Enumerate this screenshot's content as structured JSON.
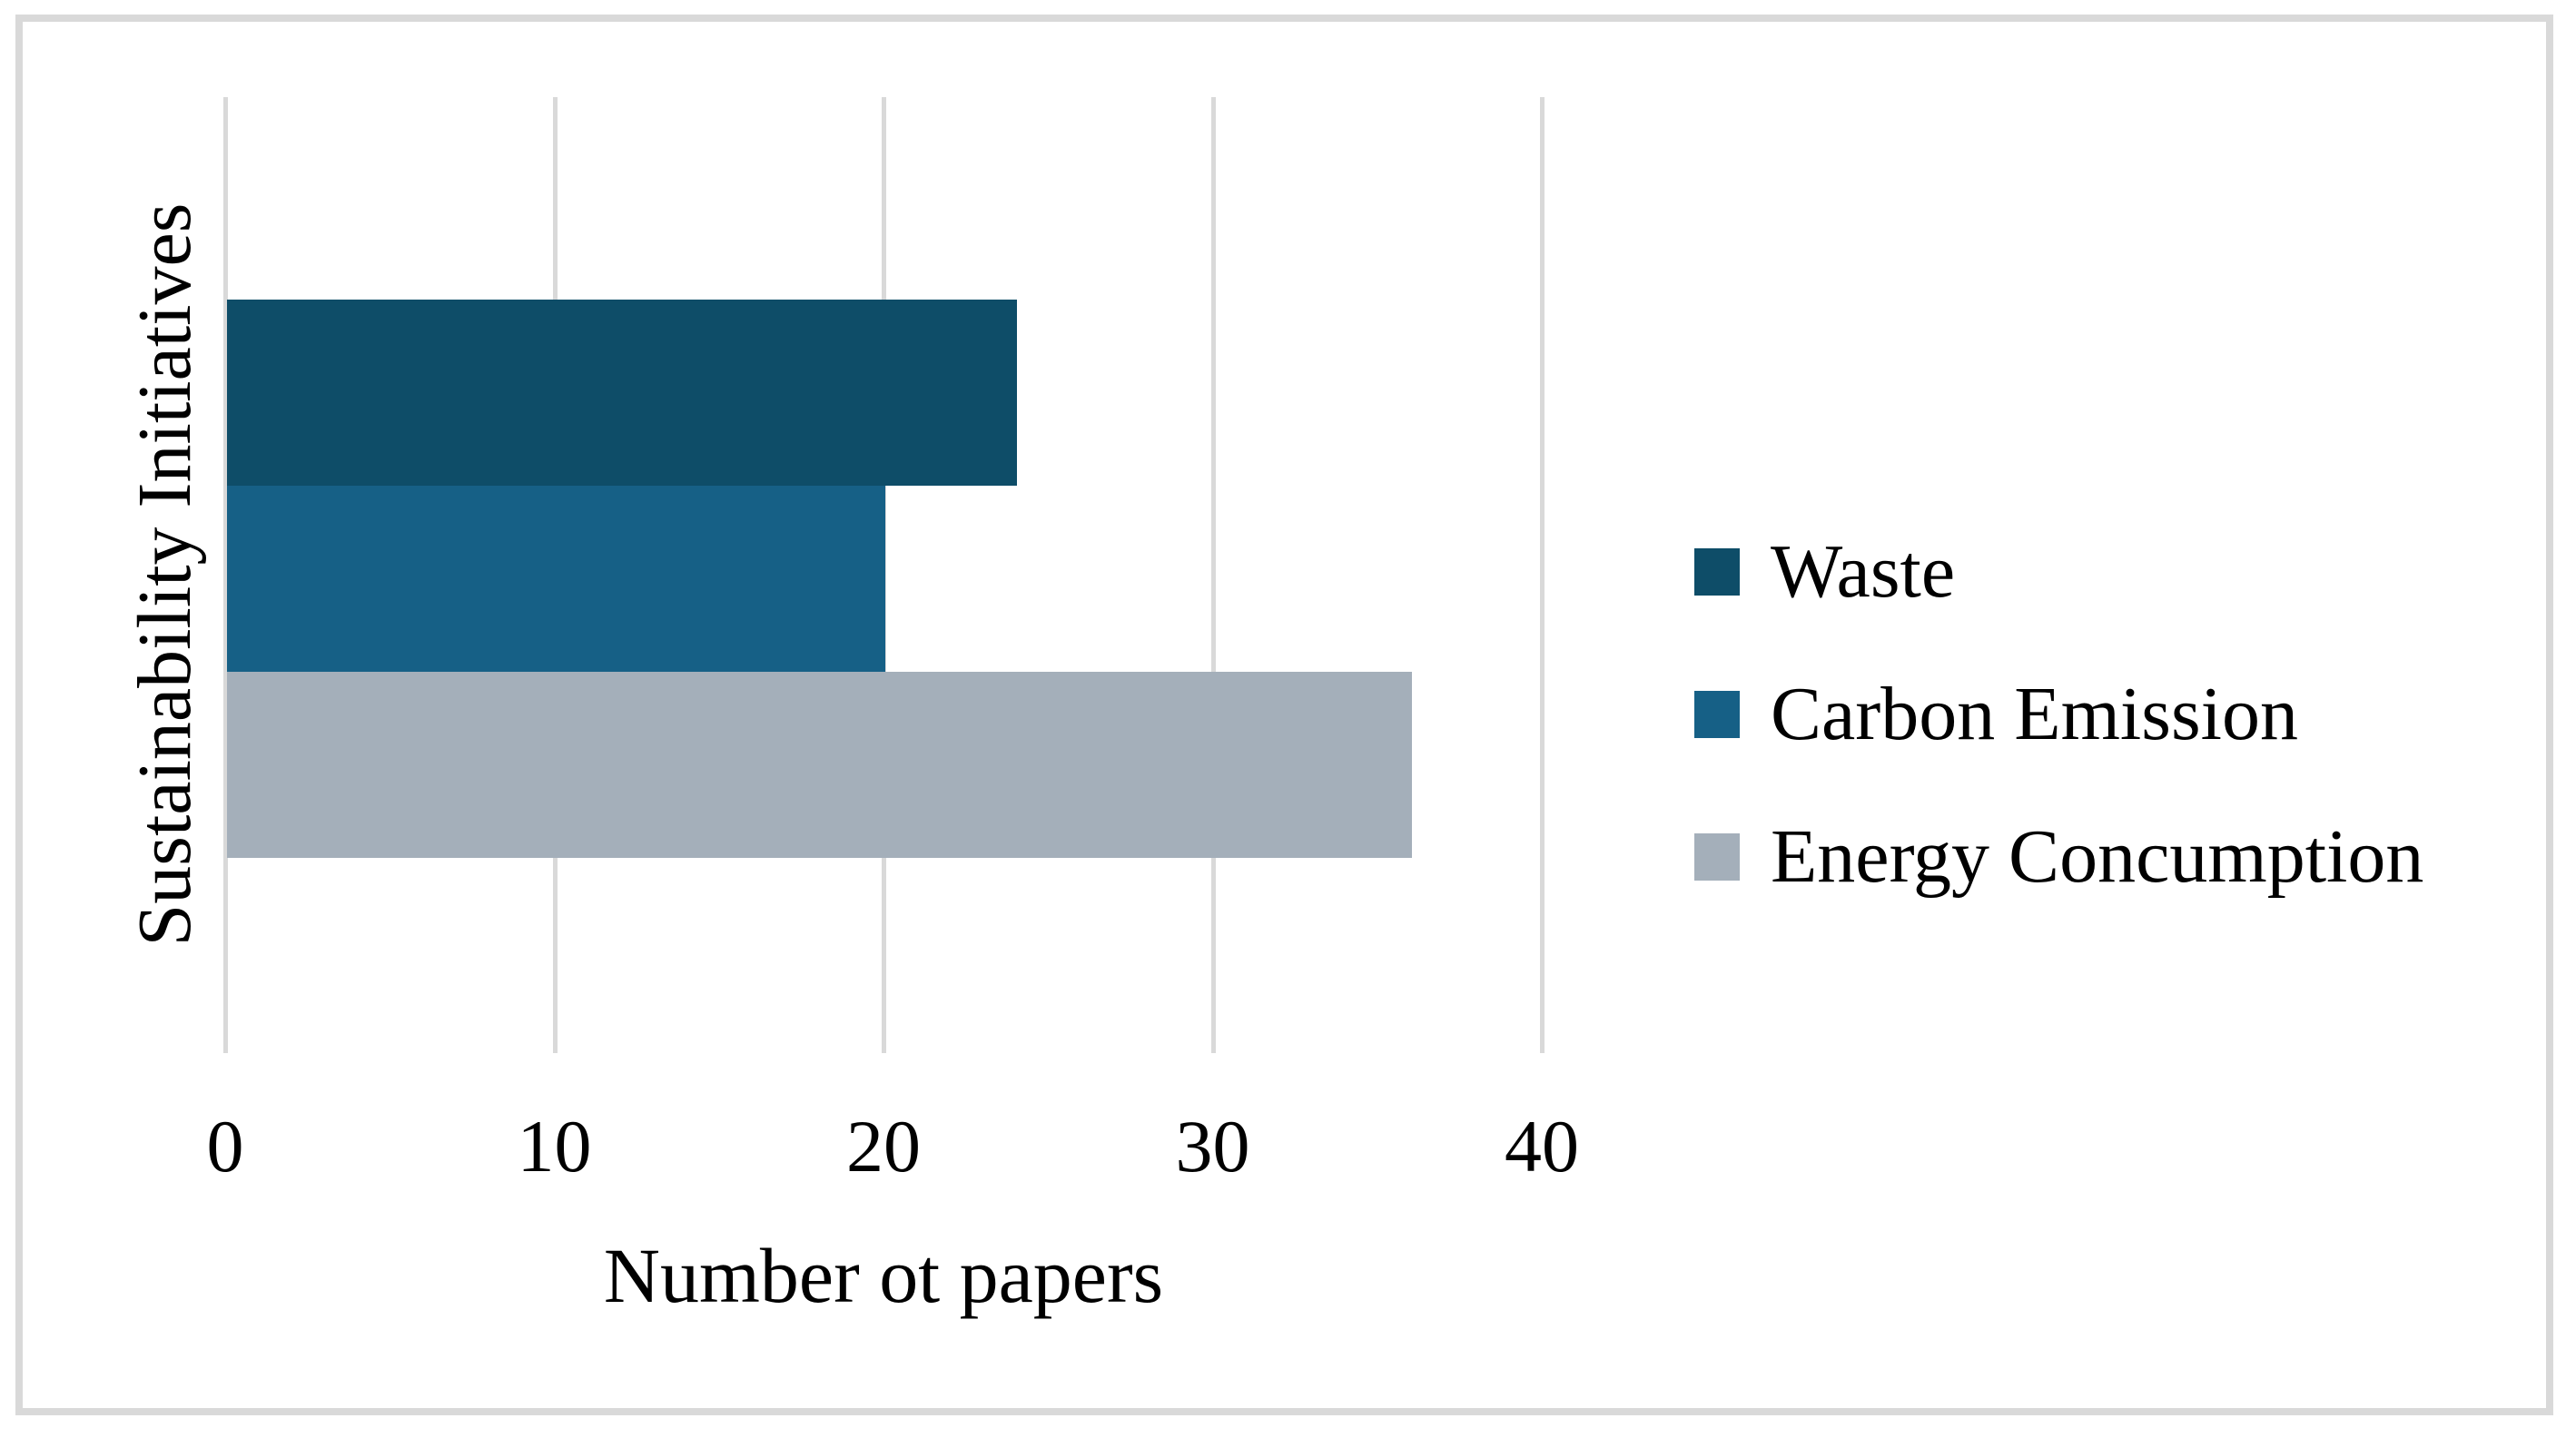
{
  "figure": {
    "background_color": "#FFFFFF",
    "border_color": "#D9D9D9",
    "text_color": "#000000"
  },
  "chart_data": {
    "type": "bar",
    "orientation": "horizontal",
    "title": "",
    "xlabel": "Number ot papers",
    "ylabel": "Sustainability Initiatives",
    "categories": [
      "Sustainability Initiatives"
    ],
    "series": [
      {
        "name": "Waste",
        "value": 24,
        "color": "#0E4D68"
      },
      {
        "name": "Carbon Emission",
        "value": 20,
        "color": "#166086"
      },
      {
        "name": "Energy Concumption",
        "value": 36,
        "color": "#A4AFBA"
      }
    ],
    "x_ticks": [
      0,
      10,
      20,
      30,
      40
    ],
    "xlim": [
      0,
      41.7
    ],
    "grid": true,
    "gridline_color": "#D9D9D9",
    "legend_position": "right",
    "legend_entries": [
      "Waste",
      "Carbon Emission",
      "Energy Concumption"
    ]
  }
}
